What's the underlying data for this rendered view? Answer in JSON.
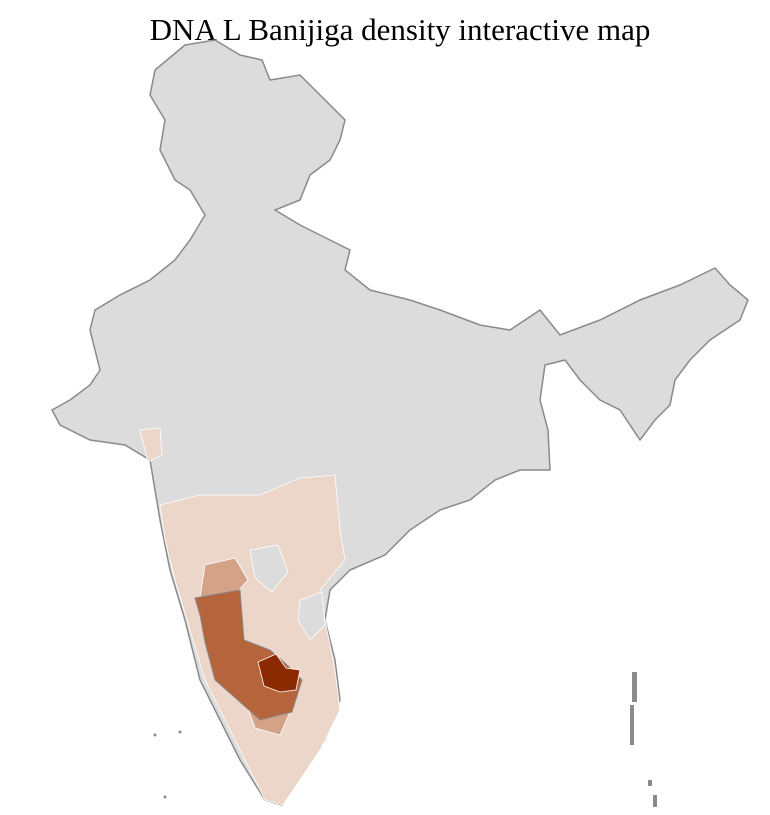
{
  "title": "DNA L Banijiga density interactive map",
  "colors": {
    "no_data": "#dcdcdc",
    "state_border": "#8a8a8a",
    "district_border": "#ffffff",
    "low": "#ecd6c9",
    "medium": "#d4a287",
    "high": "#b5643c",
    "highest": "#8b2a00"
  }
}
